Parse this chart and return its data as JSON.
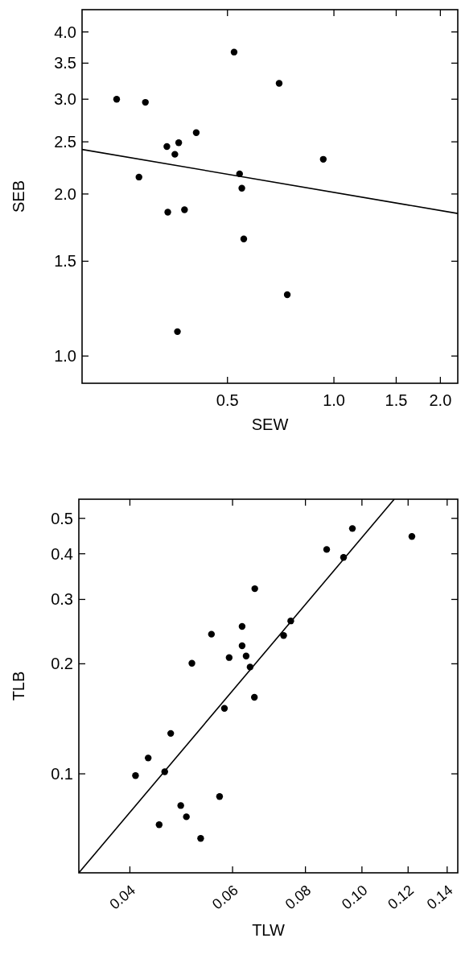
{
  "chart_data": [
    {
      "type": "scatter",
      "xlabel": "SEW",
      "ylabel": "SEB",
      "log": "xy",
      "grid": false,
      "xlim": [
        0.194,
        2.24
      ],
      "ylim": [
        0.89,
        4.4
      ],
      "xticks": [
        0.5,
        {
          "value": 1,
          "label": "1.0"
        },
        1.5,
        {
          "value": 2,
          "label": "2.0"
        }
      ],
      "yticks": [
        {
          "value": 1,
          "label": "1.0"
        },
        1.5,
        {
          "value": 2,
          "label": "2.0"
        },
        2.5,
        {
          "value": 3,
          "label": "3.0"
        },
        3.5,
        {
          "value": 4,
          "label": "4.0"
        }
      ],
      "series": [
        {
          "color": "#000000",
          "marker": "circle",
          "x": [
            0.243,
            0.293,
            0.281,
            0.337,
            0.355,
            0.364,
            0.408,
            0.339,
            0.378,
            0.361,
            0.522,
            0.7,
            0.541,
            0.549,
            0.556,
            0.738,
            0.933
          ],
          "values": [
            3.0,
            2.96,
            2.15,
            2.45,
            2.37,
            2.49,
            2.6,
            1.85,
            1.87,
            1.11,
            3.67,
            3.21,
            2.18,
            2.05,
            1.65,
            1.3,
            2.32
          ]
        },
        {
          "type": "line",
          "color": "#000000",
          "x": [
            0.194,
            2.24
          ],
          "values": [
            2.42,
            1.84
          ],
          "marker": "none"
        }
      ]
    },
    {
      "type": "scatter",
      "xlabel": "TLW",
      "ylabel": "TLB",
      "log": "xy",
      "grid": false,
      "xlim": [
        0.0327,
        0.146
      ],
      "ylim": [
        0.0536,
        0.564
      ],
      "xticks": [
        0.04,
        0.06,
        0.08,
        {
          "value": 0.1,
          "label": "0.10"
        },
        0.12,
        0.14
      ],
      "yticks": [
        0.1,
        0.2,
        0.3,
        0.4,
        0.5
      ],
      "series": [
        {
          "color": "#000000",
          "marker": "circle",
          "x": [
            0.0409,
            0.043,
            0.0459,
            0.047,
            0.0449,
            0.0489,
            0.05,
            0.0529,
            0.057,
            0.0511,
            0.0552,
            0.0581,
            0.0592,
            0.0623,
            0.0623,
            0.0633,
            0.0643,
            0.0655,
            0.0654,
            0.0734,
            0.0755,
            0.087,
            0.093,
            0.0963,
            0.1218
          ],
          "values": [
            0.0989,
            0.1105,
            0.1013,
            0.129,
            0.0726,
            0.0819,
            0.0763,
            0.0666,
            0.0867,
            0.2006,
            0.241,
            0.151,
            0.208,
            0.253,
            0.224,
            0.21,
            0.196,
            0.321,
            0.162,
            0.239,
            0.262,
            0.411,
            0.391,
            0.469,
            0.446
          ]
        },
        {
          "type": "line",
          "color": "#000000",
          "x": [
            0.0327,
            0.1136
          ],
          "values": [
            0.0536,
            0.564
          ],
          "marker": "none"
        }
      ]
    }
  ]
}
